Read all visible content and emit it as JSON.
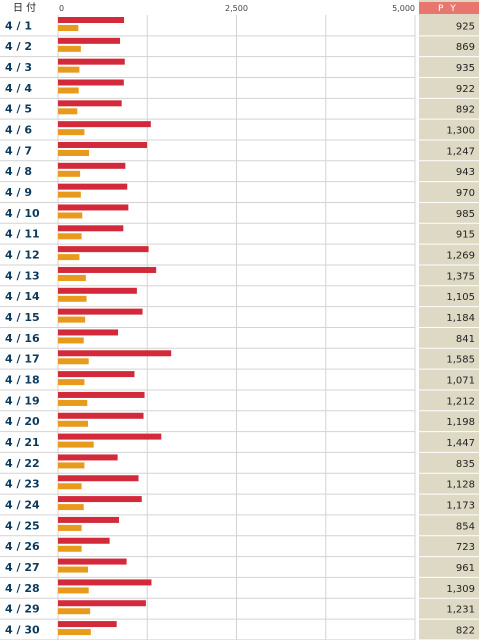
{
  "header": {
    "date_label": "日 付",
    "py_label": "P Y"
  },
  "colors": {
    "primary_bar": "#d22a3a",
    "secondary_bar": "#e89a1c",
    "py_column_bg": "#ddd9c4",
    "py_header_bg": "#e8766f",
    "date_text": "#0b3a5c",
    "grid_line": "#d3d3d3"
  },
  "chart_data": {
    "type": "bar",
    "orientation": "horizontal",
    "xlim": [
      0,
      5000
    ],
    "ticks": [
      "0",
      "2,500",
      "5,000"
    ],
    "tick_values": [
      0,
      2500,
      5000
    ],
    "grid": true,
    "categories": [
      "4 / 1",
      "4 / 2",
      "4 / 3",
      "4 / 4",
      "4 / 5",
      "4 / 6",
      "4 / 7",
      "4 / 8",
      "4 / 9",
      "4 / 10",
      "4 / 11",
      "4 / 12",
      "4 / 13",
      "4 / 14",
      "4 / 15",
      "4 / 16",
      "4 / 17",
      "4 / 18",
      "4 / 19",
      "4 / 20",
      "4 / 21",
      "4 / 22",
      "4 / 23",
      "4 / 24",
      "4 / 25",
      "4 / 26",
      "4 / 27",
      "4 / 28",
      "4 / 29",
      "4 / 30"
    ],
    "series": [
      {
        "color": "#d22a3a",
        "values": [
          925,
          869,
          935,
          922,
          892,
          1300,
          1247,
          943,
          970,
          985,
          915,
          1269,
          1375,
          1105,
          1184,
          841,
          1585,
          1071,
          1212,
          1198,
          1447,
          835,
          1128,
          1173,
          854,
          723,
          961,
          1309,
          1231,
          822
        ]
      },
      {
        "color": "#e89a1c",
        "values": [
          285,
          320,
          300,
          290,
          270,
          370,
          435,
          310,
          320,
          340,
          330,
          300,
          390,
          400,
          380,
          360,
          430,
          370,
          410,
          420,
          500,
          370,
          330,
          360,
          330,
          330,
          420,
          430,
          450,
          460
        ]
      }
    ],
    "py_values": [
      "925",
      "869",
      "935",
      "922",
      "892",
      "1,300",
      "1,247",
      "943",
      "970",
      "985",
      "915",
      "1,269",
      "1,375",
      "1,105",
      "1,184",
      "841",
      "1,585",
      "1,071",
      "1,212",
      "1,198",
      "1,447",
      "835",
      "1,128",
      "1,173",
      "854",
      "723",
      "961",
      "1,309",
      "1,231",
      "822"
    ]
  }
}
